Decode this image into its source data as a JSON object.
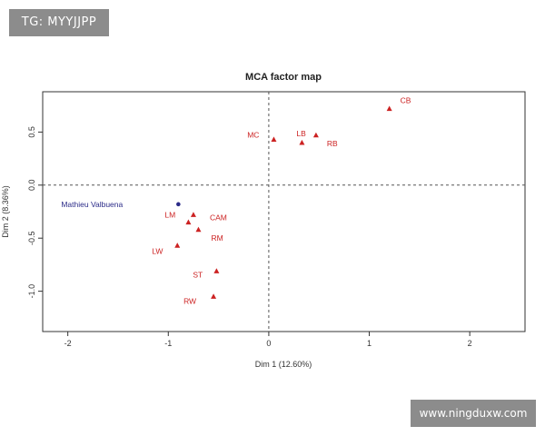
{
  "watermarks": {
    "top": "TG: MYYJJPP",
    "bottom": "www.ningduxw.com"
  },
  "chart_data": {
    "type": "scatter",
    "title": "MCA factor map",
    "xlabel": "Dim 1 (12.60%)",
    "ylabel": "Dim 2 (8.36%)",
    "xlim": [
      -2.25,
      2.55
    ],
    "ylim": [
      -1.38,
      0.88
    ],
    "xticks": [
      -2,
      -1,
      0,
      1,
      2
    ],
    "xtick_labels": [
      "-2",
      "-1",
      "0",
      "1",
      "2"
    ],
    "yticks": [
      -1.0,
      -0.5,
      0.0,
      0.5
    ],
    "ytick_labels": [
      "-1.0",
      "-0.5",
      "0.0",
      "0.5"
    ],
    "reference_lines": {
      "x": 0,
      "y": 0,
      "style": "dashed"
    },
    "grid": false,
    "colors": {
      "categories": "#cc2222",
      "individual": "#2b2b88",
      "axis": "#333333"
    },
    "series": [
      {
        "marker": "triangle",
        "color": "#cc2222",
        "points": [
          {
            "label": "CB",
            "x": 1.2,
            "y": 0.72
          },
          {
            "label": "LB",
            "x": 0.33,
            "y": 0.4
          },
          {
            "label": "RB",
            "x": 0.47,
            "y": 0.47
          },
          {
            "label": "MC",
            "x": 0.05,
            "y": 0.43
          },
          {
            "label": "CAM",
            "x": -0.75,
            "y": -0.28
          },
          {
            "label": "LM",
            "x": -0.8,
            "y": -0.35
          },
          {
            "label": "RM",
            "x": -0.7,
            "y": -0.42
          },
          {
            "label": "LW",
            "x": -0.91,
            "y": -0.57
          },
          {
            "label": "ST",
            "x": -0.52,
            "y": -0.81
          },
          {
            "label": "RW",
            "x": -0.55,
            "y": -1.05
          }
        ]
      },
      {
        "marker": "circle",
        "color": "#2b2b88",
        "points": [
          {
            "label": "Mathieu Valbuena",
            "x": -0.9,
            "y": -0.18
          }
        ]
      }
    ]
  }
}
